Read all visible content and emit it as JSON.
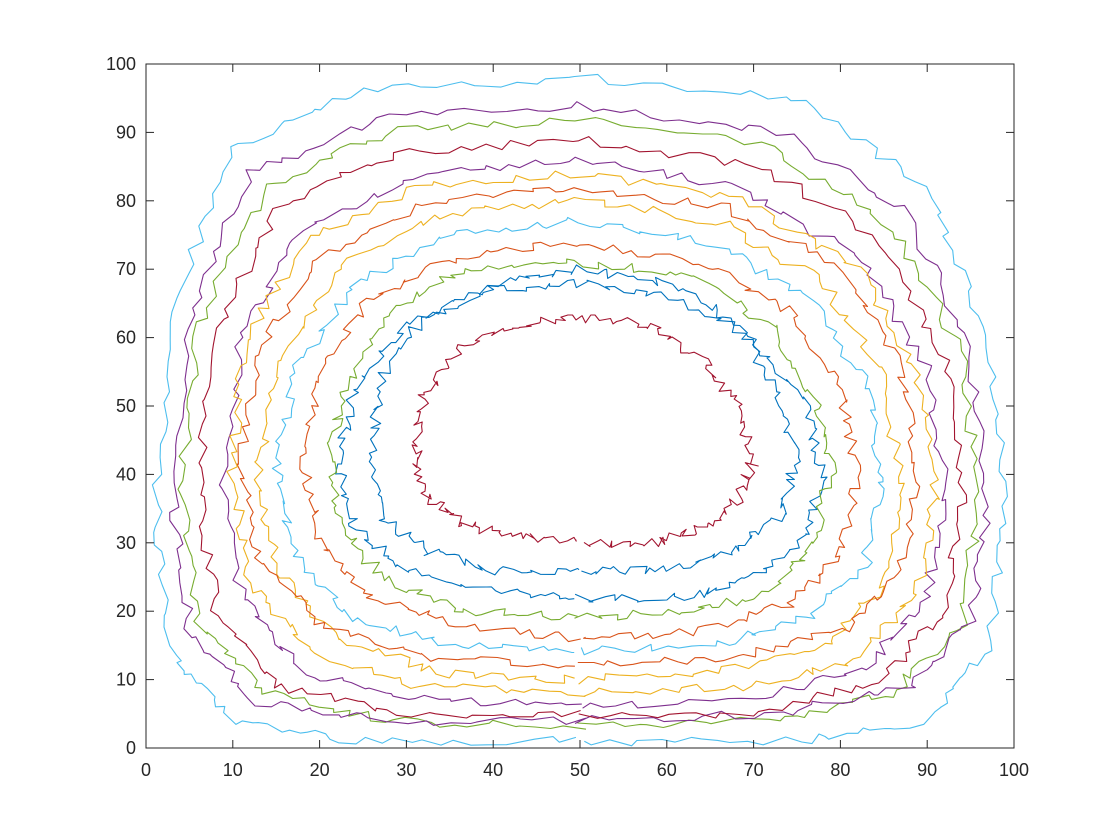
{
  "chart_data": {
    "type": "line",
    "title": "",
    "xlabel": "",
    "ylabel": "",
    "xlim": [
      0,
      100
    ],
    "ylim": [
      0,
      100
    ],
    "xticks": [
      0,
      10,
      20,
      30,
      40,
      50,
      60,
      70,
      80,
      90,
      100
    ],
    "yticks": [
      0,
      10,
      20,
      30,
      40,
      50,
      60,
      70,
      80,
      90,
      100
    ],
    "xtick_labels": [
      "0",
      "10",
      "20",
      "30",
      "40",
      "50",
      "60",
      "70",
      "80",
      "90",
      "100"
    ],
    "ytick_labels": [
      "0",
      "10",
      "20",
      "30",
      "40",
      "50",
      "60",
      "70",
      "80",
      "90",
      "100"
    ],
    "grid": false,
    "legend": "none",
    "colors": [
      "#0072BD",
      "#D95319",
      "#EDB120",
      "#7E2F8E",
      "#77AC30",
      "#4DBEEE",
      "#A2142F"
    ],
    "series": [
      {
        "x": [
          50,
          62,
          70,
          76,
          78,
          76,
          70,
          60,
          50,
          40,
          30,
          24,
          22,
          24,
          30,
          40,
          50
        ],
        "y": [
          22,
          22,
          25,
          31,
          40,
          50,
          60,
          66,
          68,
          67,
          62,
          52,
          42,
          32,
          26,
          23,
          22
        ]
      },
      {
        "x": [
          50,
          64,
          74,
          80,
          82,
          80,
          74,
          64,
          50,
          36,
          26,
          20,
          18,
          20,
          26,
          36,
          50
        ],
        "y": [
          16,
          17,
          21,
          28,
          40,
          52,
          64,
          71,
          74,
          72,
          66,
          55,
          42,
          30,
          22,
          18,
          16
        ]
      },
      {
        "x": [
          50,
          66,
          78,
          85,
          87,
          85,
          78,
          66,
          50,
          34,
          22,
          15,
          13,
          15,
          22,
          34,
          50
        ],
        "y": [
          10,
          11,
          15,
          24,
          38,
          54,
          68,
          77,
          80,
          78,
          70,
          56,
          40,
          26,
          16,
          11,
          10
        ]
      },
      {
        "x": [
          50,
          70,
          83,
          90,
          92,
          90,
          82,
          68,
          50,
          32,
          18,
          11,
          9,
          11,
          18,
          32,
          50
        ],
        "y": [
          6,
          7,
          12,
          22,
          38,
          56,
          72,
          82,
          86,
          84,
          76,
          60,
          40,
          22,
          11,
          7,
          6
        ]
      },
      {
        "x": [
          50,
          72,
          86,
          94,
          96,
          94,
          86,
          72,
          50,
          28,
          14,
          6,
          4,
          6,
          14,
          28,
          50
        ],
        "y": [
          3,
          4,
          8,
          18,
          36,
          58,
          76,
          88,
          92,
          90,
          82,
          62,
          38,
          18,
          8,
          4,
          3
        ]
      },
      {
        "x": [
          50,
          75,
          90,
          97,
          99,
          97,
          90,
          75,
          50,
          25,
          10,
          3,
          1,
          3,
          10,
          25,
          50
        ],
        "y": [
          1,
          1,
          4,
          14,
          35,
          60,
          82,
          95,
          98,
          96,
          88,
          64,
          36,
          14,
          4,
          1,
          1
        ]
      },
      {
        "x": [
          50,
          58,
          64,
          68,
          70,
          68,
          64,
          58,
          50,
          42,
          36,
          32,
          31,
          32,
          36,
          42,
          50
        ],
        "y": [
          30,
          30,
          32,
          36,
          42,
          50,
          57,
          62,
          63,
          62,
          58,
          51,
          44,
          37,
          33,
          31,
          30
        ]
      },
      {
        "x": [
          50,
          60,
          68,
          73,
          75,
          73,
          68,
          60,
          50,
          40,
          32,
          27,
          26,
          27,
          32,
          40,
          50
        ],
        "y": [
          26,
          26,
          29,
          34,
          42,
          52,
          62,
          68,
          70,
          68,
          63,
          54,
          43,
          34,
          29,
          26,
          26
        ]
      },
      {
        "x": [
          50,
          67,
          80,
          87,
          89,
          87,
          80,
          67,
          50,
          33,
          20,
          13,
          11,
          13,
          20,
          33,
          50
        ],
        "y": [
          12,
          13,
          17,
          26,
          40,
          56,
          70,
          79,
          82,
          80,
          72,
          58,
          42,
          28,
          18,
          13,
          12
        ]
      },
      {
        "x": [
          50,
          69,
          82,
          89,
          91,
          89,
          82,
          69,
          50,
          31,
          18,
          11,
          10,
          12,
          19,
          32,
          50
        ],
        "y": [
          8,
          9,
          13,
          23,
          38,
          55,
          70,
          80,
          84,
          82,
          74,
          58,
          40,
          24,
          14,
          9,
          8
        ]
      },
      {
        "x": [
          50,
          73,
          88,
          95,
          97,
          95,
          88,
          73,
          50,
          27,
          12,
          5,
          3,
          5,
          12,
          27,
          50
        ],
        "y": [
          4,
          5,
          9,
          19,
          36,
          57,
          78,
          90,
          94,
          92,
          84,
          63,
          37,
          17,
          7,
          4,
          4
        ]
      },
      {
        "x": [
          50,
          63,
          72,
          77,
          79,
          77,
          72,
          63,
          50,
          37,
          28,
          23,
          21,
          23,
          28,
          37,
          50
        ],
        "y": [
          19,
          20,
          23,
          30,
          41,
          51,
          62,
          69,
          71,
          70,
          64,
          53,
          42,
          31,
          24,
          20,
          19
        ]
      },
      {
        "x": [
          50,
          65,
          76,
          83,
          85,
          83,
          76,
          65,
          50,
          35,
          24,
          17,
          15,
          17,
          24,
          35,
          50
        ],
        "y": [
          14,
          15,
          19,
          27,
          39,
          53,
          66,
          74,
          77,
          75,
          68,
          55,
          41,
          28,
          19,
          15,
          14
        ]
      },
      {
        "x": [
          50,
          71,
          85,
          92,
          94,
          92,
          85,
          71,
          50,
          29,
          15,
          8,
          6,
          8,
          15,
          29,
          50
        ],
        "y": [
          5,
          5,
          10,
          20,
          37,
          57,
          74,
          85,
          89,
          87,
          79,
          61,
          39,
          20,
          9,
          5,
          5
        ]
      }
    ]
  }
}
